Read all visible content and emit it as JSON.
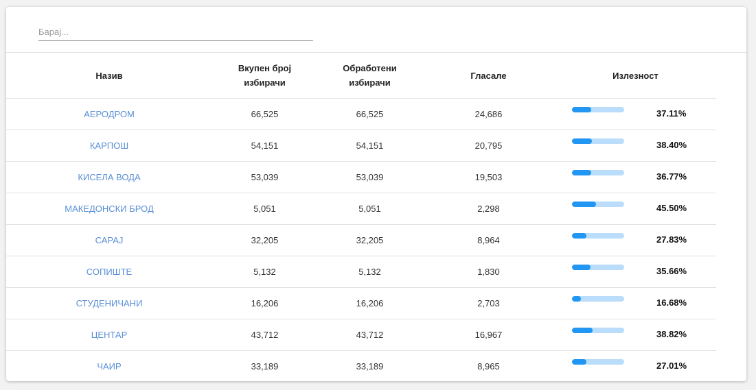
{
  "search": {
    "placeholder": "Барај..."
  },
  "table": {
    "headers": {
      "name": "Назив",
      "total_voters_line1": "Вкупен број",
      "total_voters_line2": "избирачи",
      "processed_voters_line1": "Обработени",
      "processed_voters_line2": "избирачи",
      "voted": "Гласале",
      "turnout": "Излезност"
    },
    "rows": [
      {
        "name": "АЕРОДРОМ",
        "total": "66,525",
        "processed": "66,525",
        "voted": "24,686",
        "turnout": "37.11%",
        "turnout_value": 37.11
      },
      {
        "name": "КАРПОШ",
        "total": "54,151",
        "processed": "54,151",
        "voted": "20,795",
        "turnout": "38.40%",
        "turnout_value": 38.4
      },
      {
        "name": "КИСЕЛА ВОДА",
        "total": "53,039",
        "processed": "53,039",
        "voted": "19,503",
        "turnout": "36.77%",
        "turnout_value": 36.77
      },
      {
        "name": "МАКЕДОНСКИ БРОД",
        "total": "5,051",
        "processed": "5,051",
        "voted": "2,298",
        "turnout": "45.50%",
        "turnout_value": 45.5
      },
      {
        "name": "САРАЈ",
        "total": "32,205",
        "processed": "32,205",
        "voted": "8,964",
        "turnout": "27.83%",
        "turnout_value": 27.83
      },
      {
        "name": "СОПИШТЕ",
        "total": "5,132",
        "processed": "5,132",
        "voted": "1,830",
        "turnout": "35.66%",
        "turnout_value": 35.66
      },
      {
        "name": "СТУДЕНИЧАНИ",
        "total": "16,206",
        "processed": "16,206",
        "voted": "2,703",
        "turnout": "16.68%",
        "turnout_value": 16.68
      },
      {
        "name": "ЦЕНТАР",
        "total": "43,712",
        "processed": "43,712",
        "voted": "16,967",
        "turnout": "38.82%",
        "turnout_value": 38.82
      },
      {
        "name": "ЧАИР",
        "total": "33,189",
        "processed": "33,189",
        "voted": "8,965",
        "turnout": "27.01%",
        "turnout_value": 27.01
      }
    ]
  },
  "colors": {
    "link": "#5a8fd6",
    "bar_fill": "#2196f3",
    "bar_track": "#b9ddfa"
  }
}
